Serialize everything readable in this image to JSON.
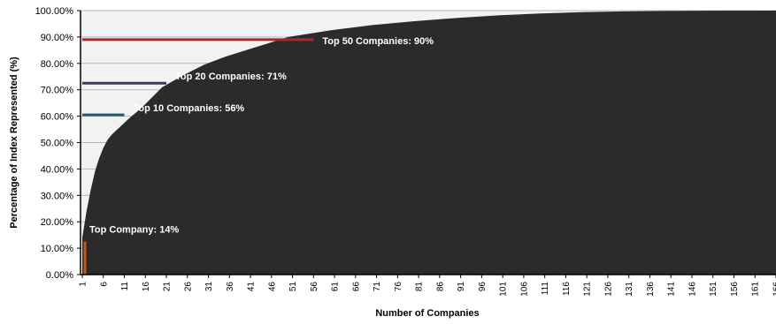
{
  "chart_data": {
    "type": "area",
    "title": "",
    "xlabel": "Number of Companies",
    "ylabel": "Percentage of Index Represented (%)",
    "ylim": [
      0,
      100
    ],
    "xlim": [
      1,
      166
    ],
    "x_tick_step": 5,
    "y_ticks": [
      "0.00%",
      "10.00%",
      "20.00%",
      "30.00%",
      "40.00%",
      "50.00%",
      "60.00%",
      "70.00%",
      "80.00%",
      "90.00%",
      "100.00%"
    ],
    "grid": true,
    "area_color": "#2b2b2b",
    "plot_background": "#f2f2f2",
    "series": [
      {
        "x": [
          1,
          2,
          3,
          4,
          5,
          6,
          7,
          8,
          9,
          10,
          12,
          15,
          20,
          25,
          30,
          35,
          40,
          45,
          50,
          60,
          70,
          80,
          90,
          100,
          110,
          120,
          130,
          140,
          150,
          166
        ],
        "values": [
          14,
          24,
          32,
          39,
          44,
          48,
          51,
          53,
          54.5,
          56,
          59,
          63,
          71,
          75.5,
          79.5,
          82.5,
          85,
          87.5,
          90,
          92.5,
          94.5,
          96,
          97.2,
          98.2,
          98.9,
          99.4,
          99.7,
          99.85,
          99.95,
          100
        ]
      }
    ],
    "annotations": [
      {
        "text": "Top Company: 14%",
        "x": 1,
        "y": 12.5,
        "color": "#c65911",
        "orientation": "vertical"
      },
      {
        "text": "Top 10 Companies: 56%",
        "x": 11,
        "y": 60.5,
        "color": "#1f5c73",
        "orientation": "horizontal"
      },
      {
        "text": "Top 20 Companies: 71%",
        "x": 21,
        "y": 72.5,
        "color": "#3f3a5c",
        "orientation": "horizontal"
      },
      {
        "text": "Top 50 Companies: 90%",
        "x": 56,
        "y": 89,
        "color": "#a52a2a",
        "orientation": "horizontal"
      }
    ]
  }
}
